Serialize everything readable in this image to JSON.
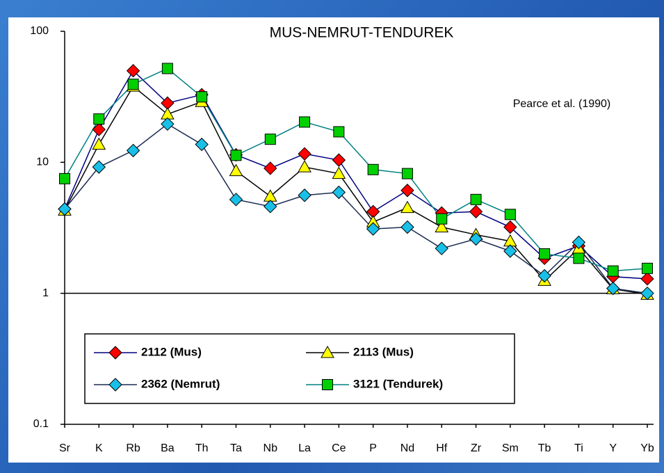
{
  "chart_data": {
    "type": "line",
    "title": "MUS-NEMRUT-TENDUREK",
    "annotation": "Pearce et al. (1990)",
    "categories": [
      "Sr",
      "K",
      "Rb",
      "Ba",
      "Th",
      "Ta",
      "Nb",
      "La",
      "Ce",
      "P",
      "Nd",
      "Hf",
      "Zr",
      "Sm",
      "Tb",
      "Ti",
      "Y",
      "Yb"
    ],
    "series": [
      {
        "name": "2112 (Mus)",
        "color": "#000080",
        "marker": "diamond",
        "marker_color": "#ff0000",
        "values": [
          4.4,
          17.8,
          50,
          28.3,
          32.8,
          11.4,
          9.0,
          11.6,
          10.4,
          4.2,
          6.1,
          4.1,
          4.2,
          3.2,
          1.85,
          2.3,
          1.34,
          1.29
        ]
      },
      {
        "name": "2113 (Mus)",
        "color": "#000000",
        "marker": "triangle",
        "marker_color": "#ffff00",
        "values": [
          4.3,
          13.7,
          38,
          23.3,
          29,
          8.6,
          5.5,
          9.2,
          8.2,
          3.5,
          4.5,
          3.2,
          2.8,
          2.5,
          1.25,
          2.2,
          1.08,
          0.98
        ]
      },
      {
        "name": "2362 (Nemrut)",
        "color": "#1a2a50",
        "marker": "diamond",
        "marker_color": "#18c0e8",
        "values": [
          4.4,
          9.2,
          12.3,
          19.6,
          13.7,
          5.2,
          4.6,
          5.6,
          5.9,
          3.1,
          3.2,
          2.2,
          2.6,
          2.1,
          1.36,
          2.45,
          1.09,
          1.0
        ]
      },
      {
        "name": "3121 (Tendurek)",
        "color": "#008080",
        "marker": "square",
        "marker_color": "#00d000",
        "values": [
          7.5,
          21.4,
          39.4,
          52,
          31.6,
          11.3,
          15,
          20.3,
          17.1,
          8.8,
          8.2,
          3.7,
          5.2,
          4.0,
          2.0,
          1.85,
          1.48,
          1.55
        ]
      }
    ],
    "ylim": [
      0.1,
      100
    ],
    "yticks": [
      0.1,
      1,
      10,
      100
    ],
    "log_scale": true,
    "hline": 1
  }
}
